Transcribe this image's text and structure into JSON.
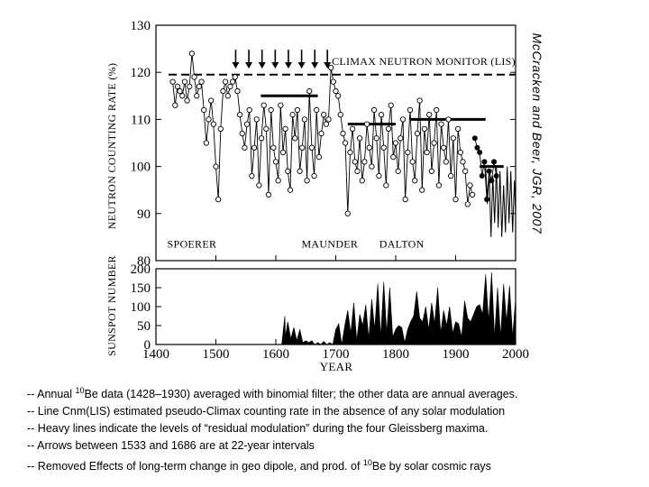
{
  "chart_data": [
    {
      "type": "scatter",
      "ylabel": "NEUTRON COUNTING RATE (%)",
      "citation": "McCracken and Beer, JGR, 2007",
      "cnm_label": "CLIMAX NEUTRON MONITOR (LIS)",
      "cnm_level": 119.5,
      "xlim": [
        1400,
        2000
      ],
      "ylim": [
        80,
        130
      ],
      "y_ticks": [
        "80",
        "90",
        "100",
        "110",
        "120",
        "130"
      ],
      "periods": [
        {
          "label": "SPOERER",
          "x": 1460
        },
        {
          "label": "MAUNDER",
          "x": 1690
        },
        {
          "label": "DALTON",
          "x": 1810
        }
      ],
      "arrows_x": [
        1533,
        1555,
        1577,
        1599,
        1621,
        1643,
        1665,
        1686
      ],
      "residual_levels": [
        {
          "x0": 1575,
          "x1": 1670,
          "y": 115
        },
        {
          "x0": 1720,
          "x1": 1800,
          "y": 109
        },
        {
          "x0": 1825,
          "x1": 1950,
          "y": 110
        },
        {
          "x0": 1940,
          "x1": 1980,
          "y": 100
        }
      ],
      "series": [
        {
          "marker": "open-circle",
          "x": [
            1428,
            1432,
            1436,
            1440,
            1444,
            1448,
            1452,
            1456,
            1460,
            1464,
            1468,
            1472,
            1476,
            1480,
            1484,
            1488,
            1492,
            1496,
            1500,
            1504,
            1508,
            1512,
            1516,
            1520,
            1524,
            1528,
            1532,
            1536,
            1540,
            1544,
            1548,
            1552,
            1556,
            1560,
            1564,
            1568,
            1572,
            1576,
            1580,
            1584,
            1588,
            1592,
            1596,
            1600,
            1604,
            1608,
            1612,
            1616,
            1620,
            1624,
            1628,
            1632,
            1636,
            1640,
            1644,
            1648,
            1652,
            1656,
            1660,
            1664,
            1668,
            1672,
            1676,
            1680,
            1684,
            1688,
            1692,
            1696,
            1700,
            1704,
            1708,
            1712,
            1716,
            1720,
            1724,
            1728,
            1732,
            1736,
            1740,
            1744,
            1748,
            1752,
            1756,
            1760,
            1764,
            1768,
            1772,
            1776,
            1780,
            1784,
            1788,
            1792,
            1796,
            1800,
            1804,
            1808,
            1812,
            1816,
            1820,
            1824,
            1828,
            1832,
            1836,
            1840,
            1844,
            1848,
            1852,
            1856,
            1860,
            1864,
            1868,
            1872,
            1876,
            1880,
            1884,
            1888,
            1892,
            1896,
            1900,
            1904,
            1908,
            1912,
            1916,
            1920,
            1924,
            1928
          ],
          "y": [
            118,
            113,
            117,
            116,
            115,
            118,
            114,
            117,
            124,
            119,
            115,
            117,
            118,
            112,
            105,
            110,
            114,
            109,
            100,
            93,
            108,
            116,
            118,
            115,
            117,
            118,
            119,
            116,
            111,
            107,
            104,
            109,
            112,
            98,
            104,
            110,
            96,
            106,
            113,
            108,
            94,
            112,
            104,
            101,
            97,
            113,
            103,
            108,
            99,
            95,
            111,
            106,
            112,
            99,
            104,
            110,
            97,
            116,
            104,
            98,
            112,
            102,
            107,
            111,
            109,
            110,
            121,
            118,
            116,
            115,
            111,
            107,
            105,
            90,
            103,
            108,
            101,
            99,
            106,
            97,
            101,
            109,
            104,
            100,
            112,
            106,
            98,
            111,
            104,
            96,
            108,
            113,
            102,
            105,
            99,
            106,
            110,
            93,
            103,
            112,
            101,
            97,
            107,
            114,
            95,
            108,
            103,
            111,
            99,
            105,
            112,
            96,
            109,
            104,
            101,
            110,
            98,
            106,
            93,
            108,
            103,
            101,
            99,
            92,
            96,
            94
          ]
        },
        {
          "marker": "filled-circle",
          "x": [
            1932,
            1936,
            1940,
            1944,
            1948,
            1952,
            1956,
            1960,
            1964,
            1968
          ],
          "y": [
            106,
            104,
            103,
            98,
            101,
            93,
            99,
            97,
            101,
            98
          ]
        },
        {
          "marker": "line",
          "x": [
            1950,
            1953,
            1956,
            1959,
            1962,
            1965,
            1968,
            1971,
            1974,
            1977,
            1980,
            1983,
            1986,
            1989,
            1992,
            1995,
            1998,
            2000
          ],
          "y": [
            100,
            92,
            99,
            85,
            98,
            88,
            100,
            87,
            99,
            85,
            96,
            86,
            100,
            88,
            99,
            86,
            97,
            90
          ]
        }
      ]
    },
    {
      "type": "area",
      "ylabel": "SUNSPOT NUMBER",
      "xlabel": "YEAR",
      "xlim": [
        1400,
        2000
      ],
      "ylim": [
        0,
        200
      ],
      "y_ticks": [
        "0",
        "50",
        "100",
        "150",
        "200"
      ],
      "x_ticks": [
        "1400",
        "1500",
        "1600",
        "1700",
        "1800",
        "1900",
        "2000"
      ],
      "series": [
        {
          "x": [
            1610,
            1615,
            1616,
            1620,
            1625,
            1630,
            1635,
            1640,
            1645,
            1650,
            1655,
            1660,
            1665,
            1670,
            1675,
            1680,
            1685,
            1690,
            1695,
            1700,
            1705,
            1710,
            1715,
            1720,
            1725,
            1730,
            1735,
            1740,
            1745,
            1750,
            1755,
            1760,
            1765,
            1770,
            1775,
            1780,
            1785,
            1790,
            1795,
            1800,
            1805,
            1810,
            1815,
            1820,
            1825,
            1830,
            1835,
            1840,
            1845,
            1850,
            1855,
            1860,
            1865,
            1870,
            1875,
            1880,
            1885,
            1890,
            1895,
            1900,
            1905,
            1910,
            1915,
            1920,
            1925,
            1930,
            1935,
            1940,
            1945,
            1950,
            1955,
            1960,
            1965,
            1970,
            1975,
            1980,
            1985,
            1990,
            1995,
            2000
          ],
          "y": [
            0,
            75,
            20,
            60,
            15,
            45,
            10,
            40,
            5,
            10,
            5,
            10,
            0,
            5,
            0,
            8,
            0,
            5,
            0,
            40,
            55,
            0,
            50,
            90,
            30,
            110,
            10,
            80,
            50,
            105,
            15,
            120,
            40,
            160,
            20,
            165,
            30,
            150,
            20,
            40,
            50,
            45,
            5,
            40,
            60,
            75,
            140,
            70,
            60,
            100,
            40,
            110,
            55,
            150,
            30,
            90,
            50,
            100,
            30,
            60,
            55,
            20,
            115,
            70,
            60,
            80,
            100,
            105,
            80,
            185,
            60,
            190,
            20,
            150,
            20,
            160,
            60,
            155,
            20,
            120
          ]
        }
      ]
    }
  ],
  "notes": [
    {
      "pre": "-- Annual ",
      "sup": "10",
      "post": "Be data (1428–1930)  averaged with binomial filter; the other data are annual averages."
    },
    {
      "pre": "--  Line Cnm(LIS)  estimated pseudo-Climax counting rate in the absence of any solar modulation",
      "sup": "",
      "post": ""
    },
    {
      "pre": "-- Heavy lines indicate the levels of “residual modulation” during the four Gleissberg maxima.",
      "sup": "",
      "post": ""
    },
    {
      "pre": "-- Arrows between 1533 and 1686 are at 22-year intervals",
      "sup": "",
      "post": ""
    },
    {
      "pre": "-- Removed Effects of long-term change in geo dipole, and  prod. of ",
      "sup": "10",
      "post": "Be by solar cosmic rays"
    }
  ]
}
